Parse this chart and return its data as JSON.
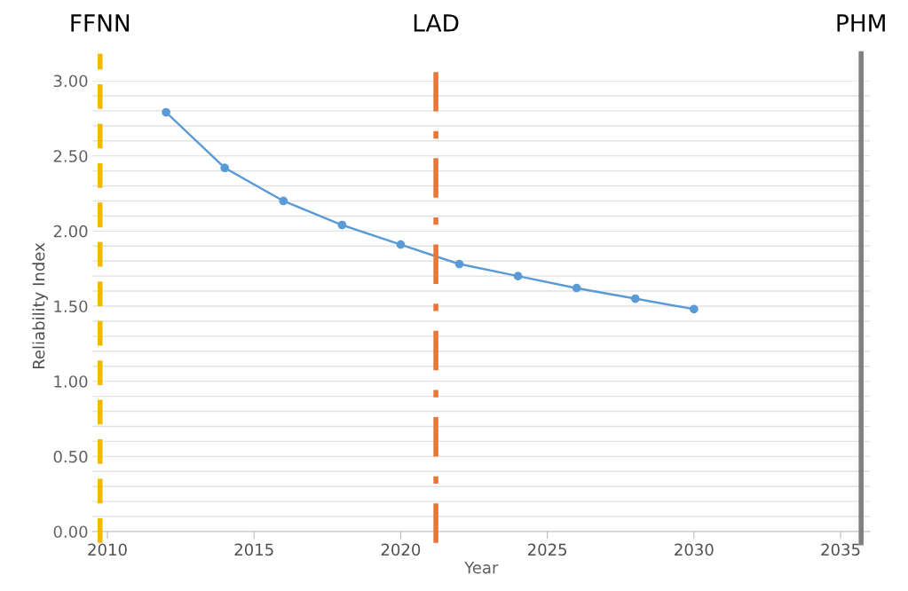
{
  "chart_data": {
    "type": "line",
    "xlabel": "Year",
    "ylabel": "Reliability Index",
    "x": [
      2012,
      2014,
      2016,
      2018,
      2020,
      2022,
      2024,
      2026,
      2028,
      2030
    ],
    "series": [
      {
        "color": "#5b9bd5",
        "values": [
          2.79,
          2.42,
          2.2,
          2.04,
          1.91,
          1.78,
          1.7,
          1.62,
          1.55,
          1.48
        ]
      }
    ],
    "marker": "circle",
    "line_style": "solid",
    "xlim": [
      2009.5,
      2036
    ],
    "xticks": [
      2010,
      2015,
      2020,
      2025,
      2030,
      2035
    ],
    "ylim": [
      0,
      3.0
    ],
    "yticks": [
      {
        "value": 0,
        "label": "0.00"
      },
      {
        "value": 0.1,
        "label": null
      },
      {
        "value": 0.2,
        "label": null
      },
      {
        "value": 0.3,
        "label": null
      },
      {
        "value": 0.4,
        "label": null
      },
      {
        "value": 0.5,
        "label": "0.50"
      },
      {
        "value": 0.6,
        "label": null
      },
      {
        "value": 0.7,
        "label": null
      },
      {
        "value": 0.8,
        "label": null
      },
      {
        "value": 0.9,
        "label": null
      },
      {
        "value": 1.0,
        "label": "1.00"
      },
      {
        "value": 1.1,
        "label": null
      },
      {
        "value": 1.2,
        "label": null
      },
      {
        "value": 1.3,
        "label": null
      },
      {
        "value": 1.4,
        "label": null
      },
      {
        "value": 1.5,
        "label": "1.50"
      },
      {
        "value": 1.6,
        "label": null
      },
      {
        "value": 1.7,
        "label": null
      },
      {
        "value": 1.8,
        "label": null
      },
      {
        "value": 1.9,
        "label": null
      },
      {
        "value": 2.0,
        "label": "2.00"
      },
      {
        "value": 2.1,
        "label": null
      },
      {
        "value": 2.2,
        "label": null
      },
      {
        "value": 2.3,
        "label": null
      },
      {
        "value": 2.4,
        "label": null
      },
      {
        "value": 2.5,
        "label": "2.50"
      },
      {
        "value": 2.6,
        "label": null
      },
      {
        "value": 2.7,
        "label": null
      },
      {
        "value": 2.8,
        "label": null
      },
      {
        "value": 2.9,
        "label": null
      },
      {
        "value": 3.0,
        "label": "3.00"
      }
    ],
    "grid": "y",
    "ref_lines": [
      {
        "axis": "x",
        "value": 2009.75,
        "label": "FFNN",
        "color": "#f5b800",
        "line_style": "dashed"
      },
      {
        "axis": "x",
        "value": 2021.2,
        "label": "LAD",
        "color": "#e8773a",
        "line_style": "dashdot"
      },
      {
        "axis": "x",
        "value": 2035.7,
        "label": "PHM",
        "color": "#808080",
        "line_style": "solid"
      }
    ]
  }
}
